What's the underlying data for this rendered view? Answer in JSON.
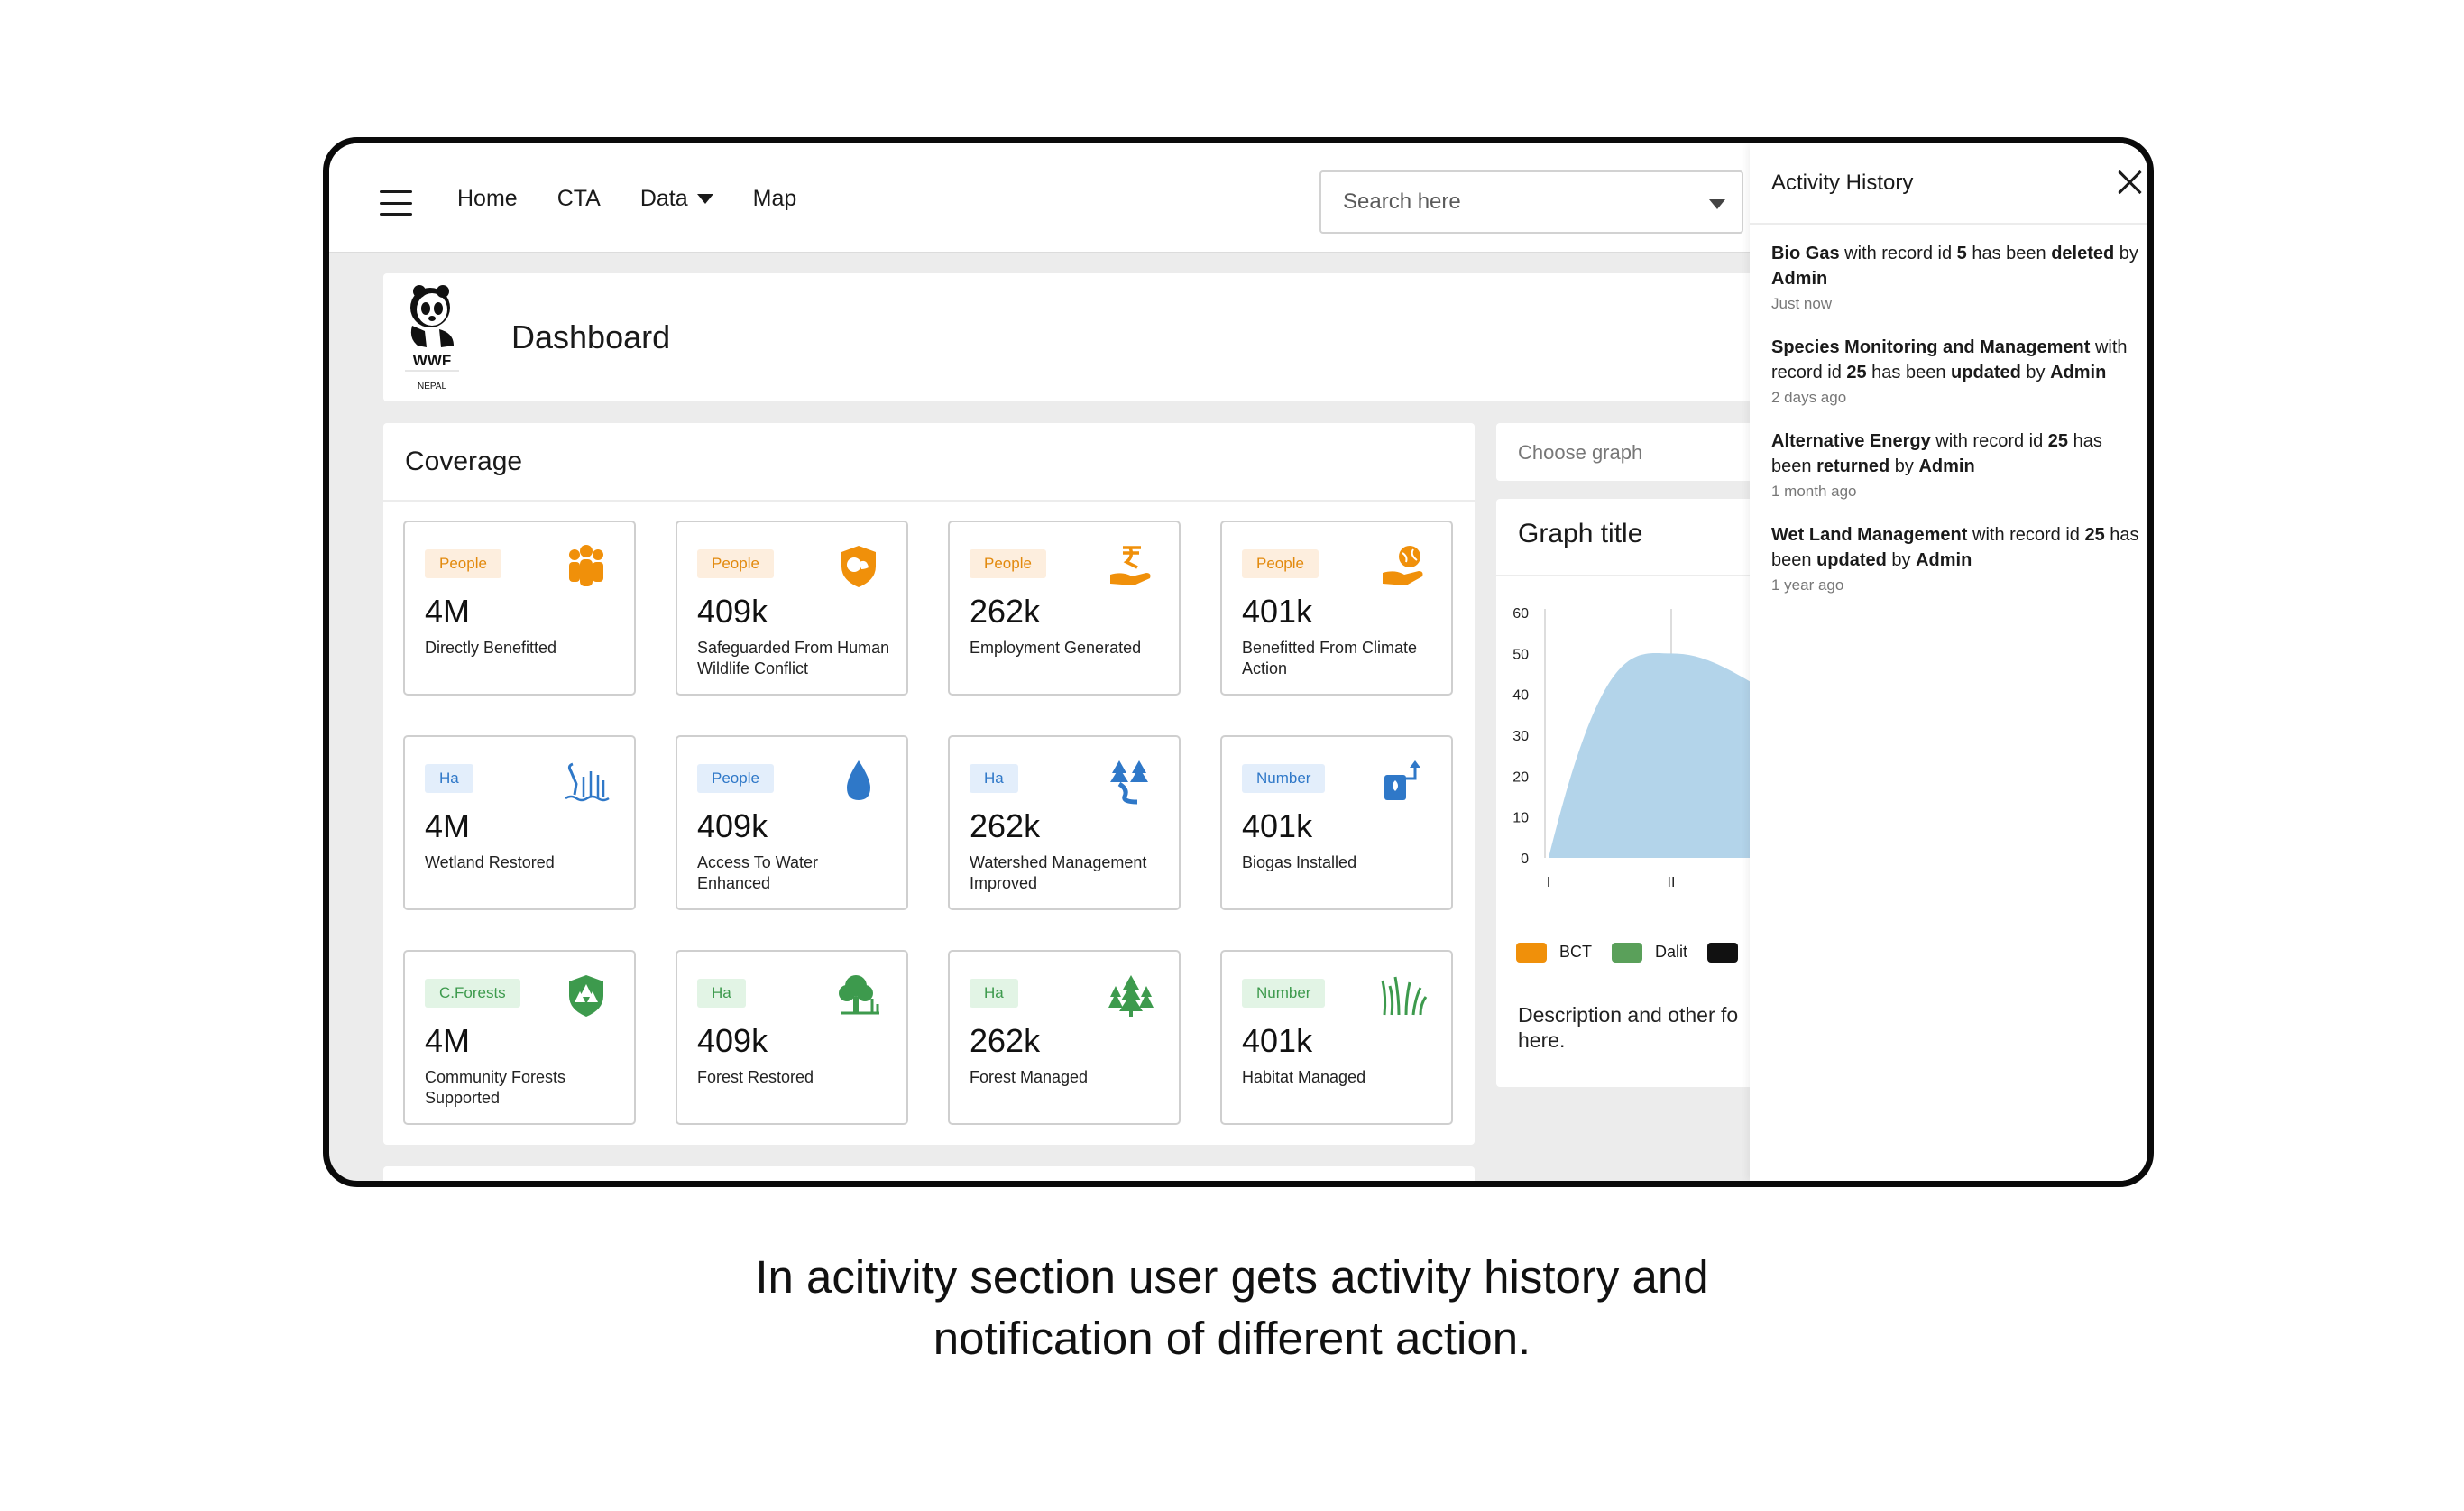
{
  "nav": {
    "home": "Home",
    "cta": "CTA",
    "data": "Data",
    "map": "Map"
  },
  "search": {
    "placeholder": "Search here"
  },
  "header": {
    "title": "Dashboard",
    "logo_text": "WWF",
    "logo_sub": "NEPAL"
  },
  "coverage": {
    "title": "Coverage",
    "tiles": [
      {
        "badge": "People",
        "badge_color": "#e2890d",
        "value": "4M",
        "label": "Directly Benefitted",
        "icon": "people-group-icon"
      },
      {
        "badge": "People",
        "badge_color": "#e2890d",
        "value": "409k",
        "label": "Safeguarded From Human Wildlife Conflict",
        "icon": "shield-wildlife-icon"
      },
      {
        "badge": "People",
        "badge_color": "#e2890d",
        "value": "262k",
        "label": "Employment Generated",
        "icon": "hand-money-icon"
      },
      {
        "badge": "People",
        "badge_color": "#e2890d",
        "value": "401k",
        "label": "Benefitted From Climate Action",
        "icon": "hand-globe-icon"
      },
      {
        "badge": "Ha",
        "badge_color": "#2f78c8",
        "value": "4M",
        "label": "Wetland Restored",
        "icon": "wetland-bird-icon"
      },
      {
        "badge": "People",
        "badge_color": "#2f78c8",
        "value": "409k",
        "label": "Access To Water Enhanced",
        "icon": "water-drop-icon"
      },
      {
        "badge": "Ha",
        "badge_color": "#2f78c8",
        "value": "262k",
        "label": "Watershed Management Improved",
        "icon": "watershed-trees-icon"
      },
      {
        "badge": "Number",
        "badge_color": "#2f78c8",
        "value": "401k",
        "label": "Biogas Installed",
        "icon": "biogas-icon"
      },
      {
        "badge": "C.Forests",
        "badge_color": "#3d9a4d",
        "value": "4M",
        "label": "Community Forests Supported",
        "icon": "forest-shield-icon"
      },
      {
        "badge": "Ha",
        "badge_color": "#3d9a4d",
        "value": "409k",
        "label": "Forest Restored",
        "icon": "tree-restore-icon"
      },
      {
        "badge": "Ha",
        "badge_color": "#3d9a4d",
        "value": "262k",
        "label": "Forest Managed",
        "icon": "pine-trees-icon"
      },
      {
        "badge": "Number",
        "badge_color": "#3d9a4d",
        "value": "401k",
        "label": "Habitat Managed",
        "icon": "grass-habitat-icon"
      }
    ]
  },
  "graph": {
    "choose_placeholder": "Choose graph",
    "title": "Graph title",
    "y_ticks": [
      "60",
      "50",
      "40",
      "30",
      "20",
      "10",
      "0"
    ],
    "x_ticks": [
      "I",
      "II"
    ],
    "legend": [
      {
        "name": "BCT",
        "color": "#f0900a"
      },
      {
        "name": "Dalit",
        "color": "#5aa05a"
      },
      {
        "name": "",
        "color": "#111111"
      }
    ],
    "description": "Description and other fo",
    "description_line2": "here."
  },
  "chart_data": {
    "type": "area",
    "x": [
      "I",
      "II"
    ],
    "series": [
      {
        "name": "",
        "values": [
          0,
          50
        ]
      }
    ],
    "ylim": [
      0,
      60
    ],
    "fill": "#b3d4ea"
  },
  "activity": {
    "title": "Activity History",
    "items": [
      {
        "subject": "Bio Gas",
        "pre": " with record id ",
        "id": "5",
        "mid": " has been ",
        "action": "deleted",
        "by": " by ",
        "actor": "Admin",
        "time": "Just now"
      },
      {
        "subject": "Species Monitoring and Management",
        "pre": " with record id ",
        "id": "25",
        "mid": " has been ",
        "action": "updated",
        "by": " by ",
        "actor": "Admin",
        "time": "2 days ago"
      },
      {
        "subject": "Alternative Energy",
        "pre": " with record id ",
        "id": "25",
        "mid": " has been ",
        "action": "returned",
        "by": " by ",
        "actor": "Admin",
        "time": "1 month ago"
      },
      {
        "subject": "Wet Land Management",
        "pre": " with record id ",
        "id": "25",
        "mid": " has been ",
        "action": "updated",
        "by": " by ",
        "actor": "Admin",
        "time": "1 year ago"
      }
    ]
  },
  "caption": {
    "line1": "In acitivity section user gets activity history and",
    "line2": "notification of different action."
  }
}
